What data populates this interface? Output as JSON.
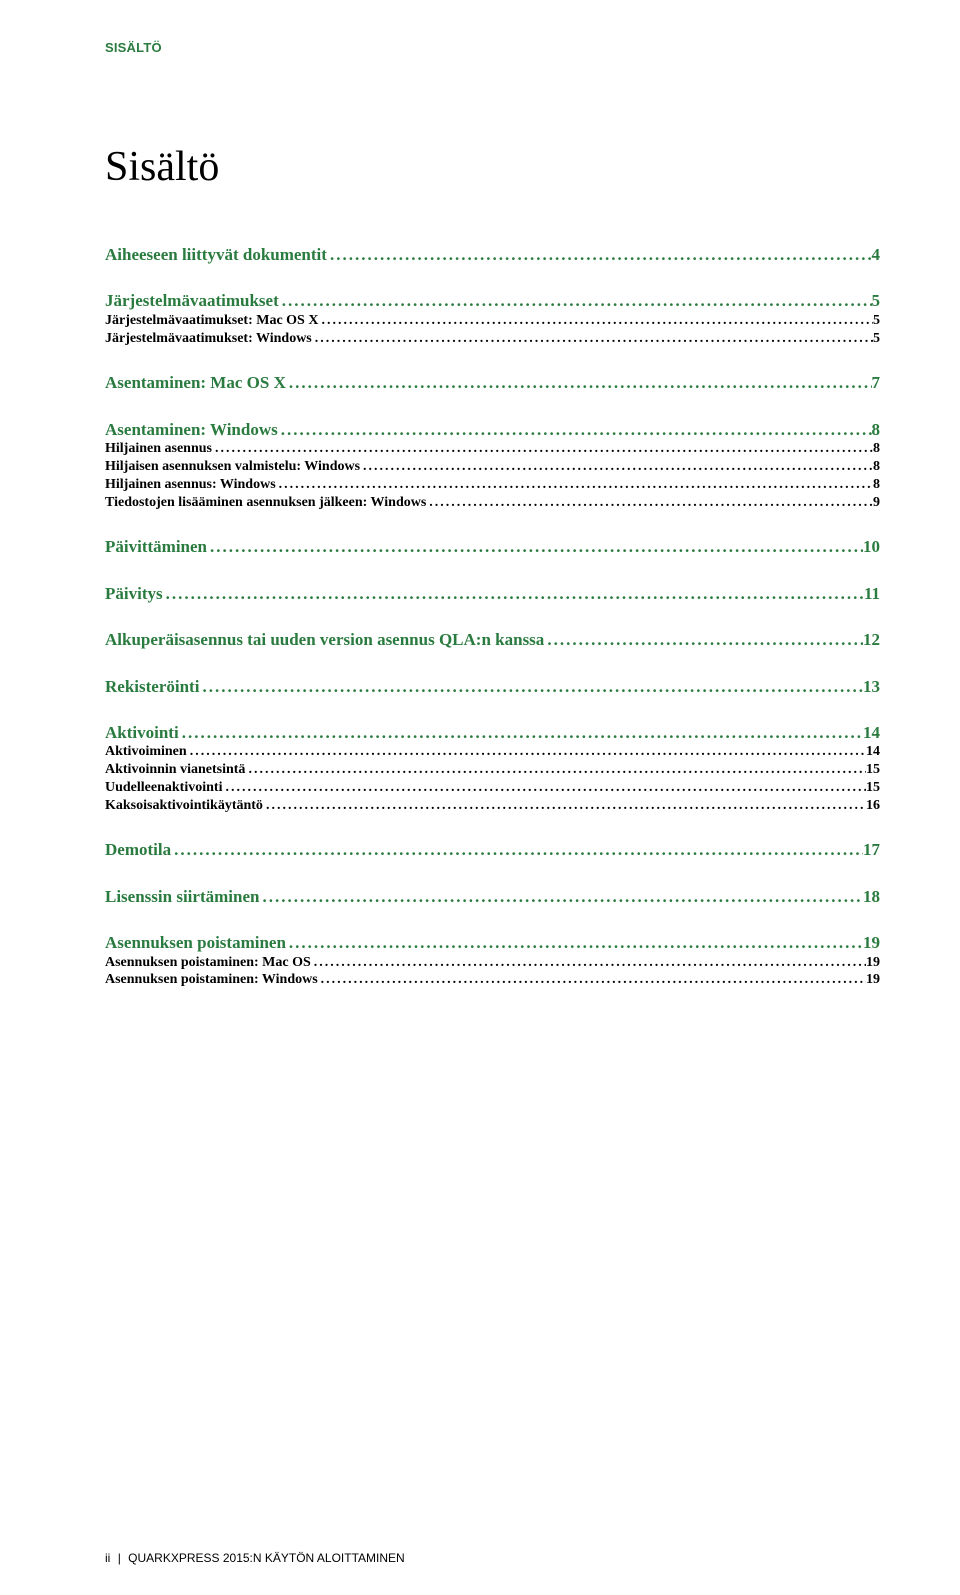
{
  "colors": {
    "accent": "#2a7b3f",
    "text": "#000000",
    "background": "#ffffff"
  },
  "runningHead": "SISÄLTÖ",
  "title": "Sisältö",
  "footer": {
    "pageLabel": "ii",
    "text": "QUARKXPRESS 2015:N KÄYTÖN ALOITTAMINEN"
  },
  "toc": [
    {
      "level": 1,
      "label": "Aiheeseen liittyvät dokumentit",
      "page": "4"
    },
    {
      "level": 1,
      "label": "Järjestelmävaatimukset",
      "page": "5"
    },
    {
      "level": 2,
      "label": "Järjestelmävaatimukset: Mac OS X",
      "page": "5"
    },
    {
      "level": 2,
      "label": "Järjestelmävaatimukset: Windows",
      "page": "5"
    },
    {
      "level": 1,
      "label": "Asentaminen: Mac OS X",
      "page": "7"
    },
    {
      "level": 1,
      "label": "Asentaminen: Windows",
      "page": "8"
    },
    {
      "level": 2,
      "label": "Hiljainen asennus",
      "page": "8"
    },
    {
      "level": 2,
      "label": "Hiljaisen asennuksen valmistelu: Windows",
      "page": "8"
    },
    {
      "level": 2,
      "label": "Hiljainen asennus: Windows",
      "page": "8"
    },
    {
      "level": 2,
      "label": "Tiedostojen lisääminen asennuksen jälkeen: Windows",
      "page": "9"
    },
    {
      "level": 1,
      "label": "Päivittäminen",
      "page": "10"
    },
    {
      "level": 1,
      "label": "Päivitys",
      "page": "11"
    },
    {
      "level": 1,
      "label": "Alkuperäisasennus tai uuden version asennus QLA:n kanssa",
      "page": "12"
    },
    {
      "level": 1,
      "label": "Rekisteröinti",
      "page": "13"
    },
    {
      "level": 1,
      "label": "Aktivointi",
      "page": "14"
    },
    {
      "level": 2,
      "label": "Aktivoiminen",
      "page": "14"
    },
    {
      "level": 2,
      "label": "Aktivoinnin vianetsintä",
      "page": "15"
    },
    {
      "level": 2,
      "label": "Uudelleenaktivointi",
      "page": "15"
    },
    {
      "level": 2,
      "label": "Kaksoisaktivointikäytäntö",
      "page": "16"
    },
    {
      "level": 1,
      "label": "Demotila",
      "page": "17"
    },
    {
      "level": 1,
      "label": "Lisenssin siirtäminen",
      "page": "18"
    },
    {
      "level": 1,
      "label": "Asennuksen poistaminen",
      "page": "19"
    },
    {
      "level": 2,
      "label": "Asennuksen poistaminen: Mac OS",
      "page": "19"
    },
    {
      "level": 2,
      "label": "Asennuksen poistaminen: Windows",
      "page": "19"
    }
  ]
}
